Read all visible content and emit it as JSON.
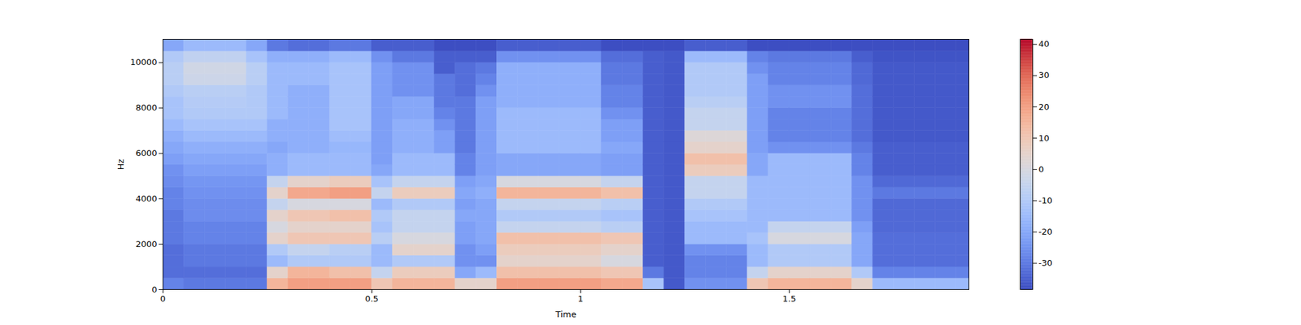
{
  "chart_data": {
    "type": "heatmap",
    "x_label": "Time",
    "y_label": "Hz",
    "xlim": [
      0,
      1.93
    ],
    "ylim": [
      0,
      11025
    ],
    "xticks": [
      0,
      0.5,
      1,
      1.5
    ],
    "yticks": [
      0,
      2000,
      4000,
      6000,
      8000,
      10000
    ],
    "x_bins": [
      0,
      0.05,
      0.1,
      0.15,
      0.2,
      0.25,
      0.3,
      0.35,
      0.4,
      0.45,
      0.5,
      0.55,
      0.6,
      0.65,
      0.7,
      0.75,
      0.8,
      0.85,
      0.9,
      0.95,
      1.0,
      1.05,
      1.1,
      1.15,
      1.2,
      1.25,
      1.3,
      1.35,
      1.4,
      1.45,
      1.5,
      1.55,
      1.6,
      1.65,
      1.7,
      1.75,
      1.8,
      1.85,
      1.9,
      1.93
    ],
    "y_bins": [
      0,
      500,
      1000,
      1500,
      2000,
      2500,
      3000,
      3500,
      4000,
      4500,
      5000,
      5500,
      6000,
      6500,
      7000,
      7500,
      8000,
      8500,
      9000,
      9500,
      10000,
      10500,
      11025
    ],
    "cells": [
      [
        -28,
        -32,
        -32,
        -32,
        -30,
        -30,
        -30,
        -28,
        -28,
        -26,
        -25,
        -22,
        -20,
        -18,
        -15,
        -12,
        -12,
        -10,
        -8,
        -8,
        -10,
        -20
      ],
      [
        -30,
        -32,
        -30,
        -30,
        -28,
        -28,
        -26,
        -26,
        -25,
        -24,
        -22,
        -20,
        -18,
        -15,
        -12,
        -10,
        -9,
        -8,
        -3,
        -2,
        -6,
        -15
      ],
      [
        -30,
        -32,
        -30,
        -30,
        -28,
        -28,
        -26,
        -26,
        -25,
        -24,
        -22,
        -20,
        -18,
        -15,
        -12,
        -10,
        -9,
        -8,
        -3,
        -2,
        -6,
        -15
      ],
      [
        -30,
        -32,
        -30,
        -30,
        -28,
        -28,
        -26,
        -26,
        -25,
        -24,
        -22,
        -20,
        -18,
        -15,
        -12,
        -10,
        -9,
        -8,
        -3,
        -2,
        -6,
        -15
      ],
      [
        -30,
        -32,
        -30,
        -30,
        -28,
        -28,
        -26,
        -26,
        -25,
        -24,
        -22,
        -20,
        -18,
        -15,
        -12,
        -10,
        -10,
        -10,
        -8,
        -8,
        -12,
        -20
      ],
      [
        15,
        5,
        -15,
        -10,
        5,
        0,
        5,
        -5,
        5,
        -5,
        -18,
        -18,
        -20,
        -18,
        -18,
        -15,
        -15,
        -15,
        -15,
        -15,
        -18,
        -30
      ],
      [
        20,
        15,
        -10,
        -5,
        10,
        5,
        10,
        0,
        18,
        5,
        -15,
        -15,
        -18,
        -18,
        -18,
        -18,
        -18,
        -18,
        -15,
        -15,
        -18,
        -32
      ],
      [
        20,
        15,
        -10,
        -5,
        10,
        5,
        10,
        0,
        18,
        5,
        -15,
        -15,
        -18,
        -18,
        -18,
        -18,
        -18,
        -18,
        -15,
        -15,
        -18,
        -32
      ],
      [
        20,
        12,
        -10,
        -8,
        10,
        5,
        12,
        0,
        20,
        8,
        -15,
        -15,
        -16,
        -14,
        -12,
        -12,
        -12,
        -12,
        -12,
        -12,
        -15,
        -30
      ],
      [
        20,
        12,
        -10,
        -8,
        10,
        5,
        12,
        0,
        20,
        8,
        -15,
        -15,
        -16,
        -14,
        -12,
        -12,
        -12,
        -12,
        -12,
        -12,
        -15,
        -30
      ],
      [
        10,
        -5,
        -15,
        -15,
        -8,
        -12,
        -10,
        -15,
        -5,
        -12,
        -20,
        -22,
        -22,
        -22,
        -22,
        -22,
        -22,
        -22,
        -22,
        -22,
        -25,
        -35
      ],
      [
        15,
        8,
        -10,
        5,
        0,
        -5,
        -5,
        -10,
        8,
        -5,
        -15,
        -15,
        -18,
        -18,
        -18,
        -20,
        -20,
        -25,
        -25,
        -25,
        -30,
        -35
      ],
      [
        15,
        8,
        -10,
        5,
        0,
        -5,
        -5,
        -10,
        8,
        -5,
        -15,
        -15,
        -18,
        -18,
        -18,
        -20,
        -20,
        -25,
        -25,
        -25,
        -30,
        -35
      ],
      [
        15,
        8,
        -10,
        5,
        0,
        -5,
        -5,
        -10,
        8,
        -5,
        -15,
        -15,
        -22,
        -22,
        -25,
        -28,
        -30,
        -30,
        -30,
        -35,
        -35,
        -38
      ],
      [
        5,
        -20,
        -25,
        -25,
        -22,
        -22,
        -20,
        -22,
        -20,
        -22,
        -28,
        -28,
        -30,
        -30,
        -30,
        -30,
        -30,
        -32,
        -32,
        -32,
        -35,
        -38
      ],
      [
        5,
        -15,
        -25,
        -22,
        -20,
        -20,
        -20,
        -20,
        -18,
        -20,
        -22,
        -22,
        -22,
        -22,
        -22,
        -22,
        -22,
        -25,
        -28,
        -30,
        -35,
        -38
      ],
      [
        20,
        12,
        5,
        8,
        12,
        -5,
        -10,
        -5,
        15,
        0,
        -20,
        -20,
        -15,
        -15,
        -15,
        -15,
        -18,
        -18,
        -18,
        -18,
        -25,
        -35
      ],
      [
        20,
        12,
        5,
        8,
        12,
        -5,
        -10,
        -5,
        15,
        0,
        -20,
        -20,
        -15,
        -15,
        -15,
        -15,
        -18,
        -18,
        -18,
        -18,
        -25,
        -35
      ],
      [
        20,
        12,
        5,
        8,
        12,
        -5,
        -10,
        -5,
        15,
        0,
        -20,
        -20,
        -15,
        -15,
        -15,
        -15,
        -18,
        -18,
        -18,
        -18,
        -25,
        -35
      ],
      [
        20,
        12,
        5,
        8,
        12,
        -5,
        -10,
        -5,
        15,
        0,
        -20,
        -20,
        -15,
        -15,
        -15,
        -15,
        -18,
        -18,
        -18,
        -18,
        -25,
        -35
      ],
      [
        20,
        12,
        5,
        8,
        12,
        -5,
        -10,
        -5,
        15,
        0,
        -20,
        -20,
        -15,
        -15,
        -15,
        -15,
        -18,
        -18,
        -18,
        -18,
        -25,
        -35
      ],
      [
        18,
        10,
        0,
        5,
        10,
        -8,
        -12,
        -8,
        12,
        -5,
        -22,
        -22,
        -20,
        -22,
        -22,
        -25,
        -28,
        -28,
        -30,
        -30,
        -32,
        -38
      ],
      [
        18,
        10,
        0,
        5,
        10,
        -8,
        -12,
        -8,
        12,
        -5,
        -22,
        -22,
        -20,
        -22,
        -22,
        -25,
        -28,
        -28,
        -30,
        -30,
        -32,
        -38
      ],
      [
        -12,
        -30,
        -35,
        -35,
        -35,
        -35,
        -35,
        -35,
        -35,
        -35,
        -35,
        -35,
        -35,
        -35,
        -35,
        -35,
        -35,
        -35,
        -35,
        -35,
        -35,
        -38
      ],
      [
        -36,
        -36,
        -36,
        -36,
        -36,
        -36,
        -36,
        -36,
        -36,
        -36,
        -36,
        -36,
        -36,
        -36,
        -36,
        -36,
        -36,
        -36,
        -36,
        -36,
        -36,
        -38
      ],
      [
        -25,
        -28,
        -28,
        -25,
        -15,
        -15,
        -12,
        -10,
        -5,
        -5,
        8,
        12,
        5,
        2,
        -5,
        -5,
        -8,
        -10,
        -10,
        -10,
        -15,
        -35
      ],
      [
        -25,
        -28,
        -28,
        -25,
        -15,
        -15,
        -12,
        -10,
        -5,
        -5,
        8,
        12,
        5,
        2,
        -5,
        -5,
        -8,
        -10,
        -10,
        -10,
        -15,
        -35
      ],
      [
        -25,
        -28,
        -28,
        -25,
        -15,
        -15,
        -12,
        -10,
        -5,
        -5,
        8,
        12,
        5,
        2,
        -5,
        -5,
        -8,
        -10,
        -10,
        -10,
        -15,
        -35
      ],
      [
        10,
        -5,
        -15,
        -15,
        -12,
        -15,
        -15,
        -15,
        -15,
        -15,
        -20,
        -20,
        -22,
        -22,
        -22,
        -22,
        -22,
        -22,
        -22,
        -25,
        -28,
        -38
      ],
      [
        15,
        5,
        -10,
        -10,
        0,
        -5,
        -15,
        -15,
        -15,
        -15,
        -15,
        -15,
        -25,
        -28,
        -28,
        -28,
        -25,
        -25,
        -28,
        -28,
        -30,
        -38
      ],
      [
        15,
        5,
        -10,
        -10,
        0,
        -5,
        -15,
        -15,
        -15,
        -15,
        -15,
        -15,
        -25,
        -28,
        -28,
        -28,
        -25,
        -25,
        -28,
        -28,
        -30,
        -38
      ],
      [
        15,
        5,
        -10,
        -10,
        0,
        -5,
        -15,
        -15,
        -15,
        -15,
        -15,
        -15,
        -25,
        -28,
        -28,
        -28,
        -25,
        -25,
        -28,
        -28,
        -30,
        -38
      ],
      [
        15,
        5,
        -10,
        -10,
        0,
        -5,
        -15,
        -15,
        -15,
        -15,
        -15,
        -15,
        -25,
        -28,
        -28,
        -28,
        -25,
        -25,
        -28,
        -28,
        -30,
        -38
      ],
      [
        5,
        -10,
        -20,
        -20,
        -20,
        -22,
        -25,
        -25,
        -25,
        -25,
        -28,
        -28,
        -30,
        -32,
        -32,
        -32,
        -32,
        -32,
        -33,
        -33,
        -35,
        -38
      ],
      [
        -15,
        -28,
        -32,
        -32,
        -32,
        -33,
        -33,
        -33,
        -30,
        -33,
        -35,
        -35,
        -35,
        -36,
        -36,
        -36,
        -36,
        -36,
        -36,
        -36,
        -37,
        -38
      ],
      [
        -15,
        -28,
        -32,
        -32,
        -32,
        -33,
        -33,
        -33,
        -30,
        -33,
        -35,
        -35,
        -35,
        -36,
        -36,
        -36,
        -36,
        -36,
        -36,
        -36,
        -37,
        -38
      ],
      [
        -15,
        -28,
        -32,
        -32,
        -32,
        -33,
        -33,
        -33,
        -30,
        -33,
        -35,
        -35,
        -35,
        -36,
        -36,
        -36,
        -36,
        -36,
        -36,
        -36,
        -37,
        -38
      ],
      [
        -15,
        -28,
        -32,
        -32,
        -32,
        -33,
        -33,
        -33,
        -30,
        -33,
        -35,
        -35,
        -35,
        -36,
        -36,
        -36,
        -36,
        -36,
        -36,
        -36,
        -37,
        -38
      ],
      [
        -15,
        -28,
        -32,
        -32,
        -32,
        -33,
        -33,
        -33,
        -30,
        -33,
        -35,
        -35,
        -35,
        -36,
        -36,
        -36,
        -36,
        -36,
        -36,
        -36,
        -37,
        -38
      ]
    ],
    "colorbar": {
      "lim": [
        -38.4,
        41.6
      ],
      "ticks": [
        -30,
        -20,
        -10,
        0,
        10,
        20,
        30,
        40
      ]
    }
  }
}
